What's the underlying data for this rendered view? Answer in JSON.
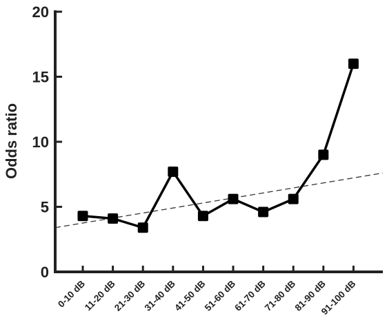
{
  "chart_data": {
    "type": "line",
    "title": "",
    "xlabel": "",
    "ylabel": "Odds ratio",
    "ylim": [
      0,
      20
    ],
    "yticks": [
      0,
      5,
      10,
      15,
      20
    ],
    "categories": [
      "0-10 dB",
      "11-20 dB",
      "21-30 dB",
      "31-40 dB",
      "41-50 dB",
      "51-60 dB",
      "61-70 dB",
      "71-80 dB",
      "81-90 dB",
      "91-100 dB"
    ],
    "series": [
      {
        "values": [
          4.3,
          4.1,
          3.4,
          7.7,
          4.3,
          5.6,
          4.6,
          5.6,
          9.0,
          16.0
        ],
        "marker": "square",
        "color": "#000000"
      }
    ],
    "trendline": {
      "style": "dashed",
      "color": "#333333",
      "start_value": 3.4,
      "end_value": 7.6
    },
    "grid": false,
    "legend": "none"
  }
}
